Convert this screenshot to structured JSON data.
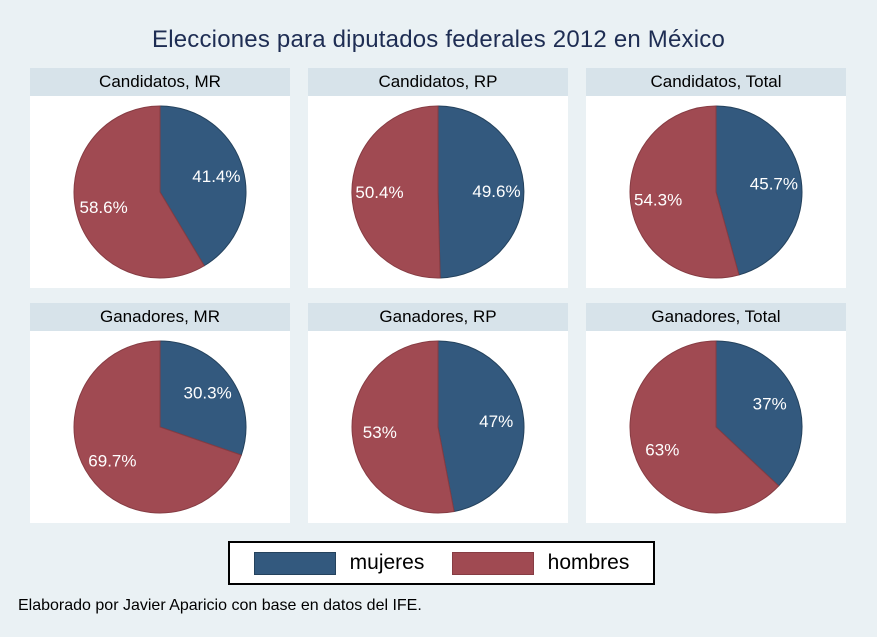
{
  "title": "Elecciones para diputados federales 2012 en México",
  "note": "Elaborado por Javier Aparicio con base en datos del IFE.",
  "colors": {
    "mujeres": "#33597e",
    "mujeres_border": "#24425d",
    "hombres": "#a04a52",
    "hombres_border": "#863c43",
    "background": "#eaf1f4",
    "panel_header": "#d7e3ea",
    "title_text": "#1e2d53",
    "slice_label_text": "#ffffff"
  },
  "legend": {
    "items": [
      {
        "label": "mujeres",
        "color": "#33597e"
      },
      {
        "label": "hombres",
        "color": "#a04a52"
      }
    ]
  },
  "chart_data": [
    {
      "type": "pie",
      "title": "Candidatos, MR",
      "categories": [
        "mujeres",
        "hombres"
      ],
      "values": [
        41.4,
        58.6
      ],
      "display_labels": [
        "41.4%",
        "58.6%"
      ],
      "start_angle": "12-oclock",
      "direction": "clockwise"
    },
    {
      "type": "pie",
      "title": "Candidatos, RP",
      "categories": [
        "mujeres",
        "hombres"
      ],
      "values": [
        49.6,
        50.4
      ],
      "display_labels": [
        "49.6%",
        "50.4%"
      ],
      "start_angle": "12-oclock",
      "direction": "clockwise"
    },
    {
      "type": "pie",
      "title": "Candidatos, Total",
      "categories": [
        "mujeres",
        "hombres"
      ],
      "values": [
        45.7,
        54.3
      ],
      "display_labels": [
        "45.7%",
        "54.3%"
      ],
      "start_angle": "12-oclock",
      "direction": "clockwise"
    },
    {
      "type": "pie",
      "title": "Ganadores, MR",
      "categories": [
        "mujeres",
        "hombres"
      ],
      "values": [
        30.3,
        69.7
      ],
      "display_labels": [
        "30.3%",
        "69.7%"
      ],
      "start_angle": "12-oclock",
      "direction": "clockwise"
    },
    {
      "type": "pie",
      "title": "Ganadores, RP",
      "categories": [
        "mujeres",
        "hombres"
      ],
      "values": [
        47,
        53
      ],
      "display_labels": [
        "47%",
        "53%"
      ],
      "start_angle": "12-oclock",
      "direction": "clockwise"
    },
    {
      "type": "pie",
      "title": "Ganadores, Total",
      "categories": [
        "mujeres",
        "hombres"
      ],
      "values": [
        37,
        63
      ],
      "display_labels": [
        "37%",
        "63%"
      ],
      "start_angle": "12-oclock",
      "direction": "clockwise"
    }
  ]
}
